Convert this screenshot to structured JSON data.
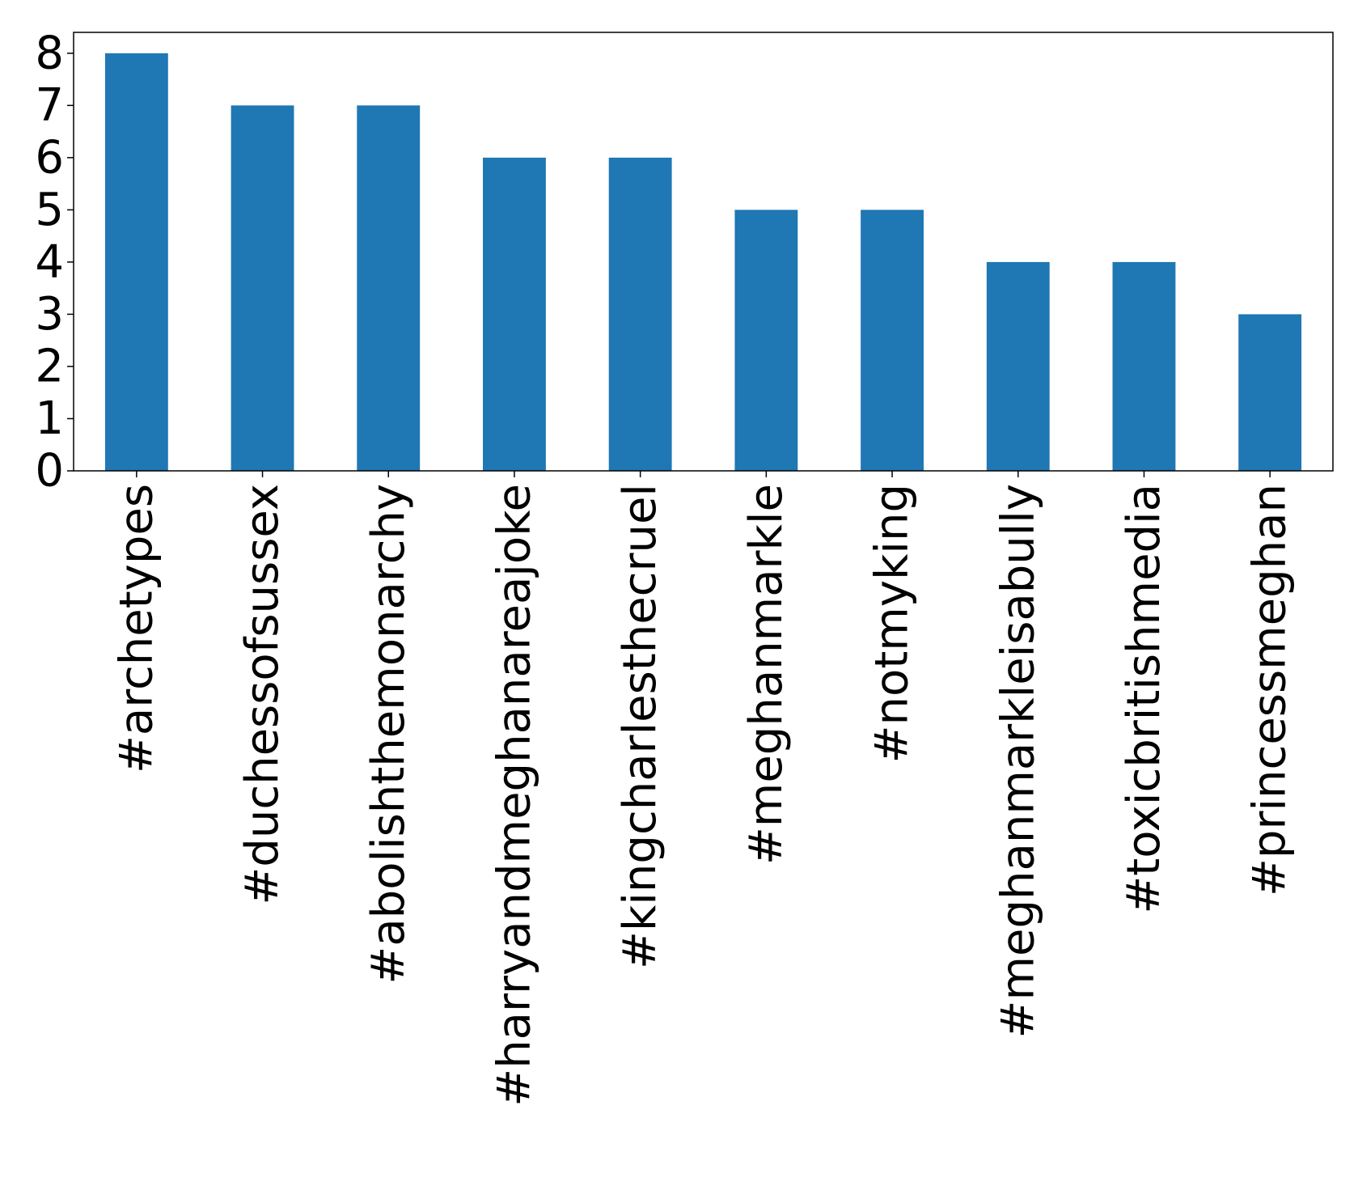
{
  "chart_data": {
    "type": "bar",
    "categories": [
      "#archetypes",
      "#duchessofsussex",
      "#abolishthemonarchy",
      "#harryandmeghanareajoke",
      "#kingcharlesthecruel",
      "#meghanmarkle",
      "#notmyking",
      "#meghanmarkleisabully",
      "#toxicbritishmedia",
      "#princessmeghan"
    ],
    "values": [
      8,
      7,
      7,
      6,
      6,
      5,
      5,
      4,
      4,
      3
    ],
    "yticks": [
      "0",
      "1",
      "2",
      "3",
      "4",
      "5",
      "6",
      "7",
      "8"
    ],
    "ylim": [
      0,
      8.4
    ],
    "bar_color": "#1f77b4",
    "grid": false,
    "legend": "none"
  }
}
